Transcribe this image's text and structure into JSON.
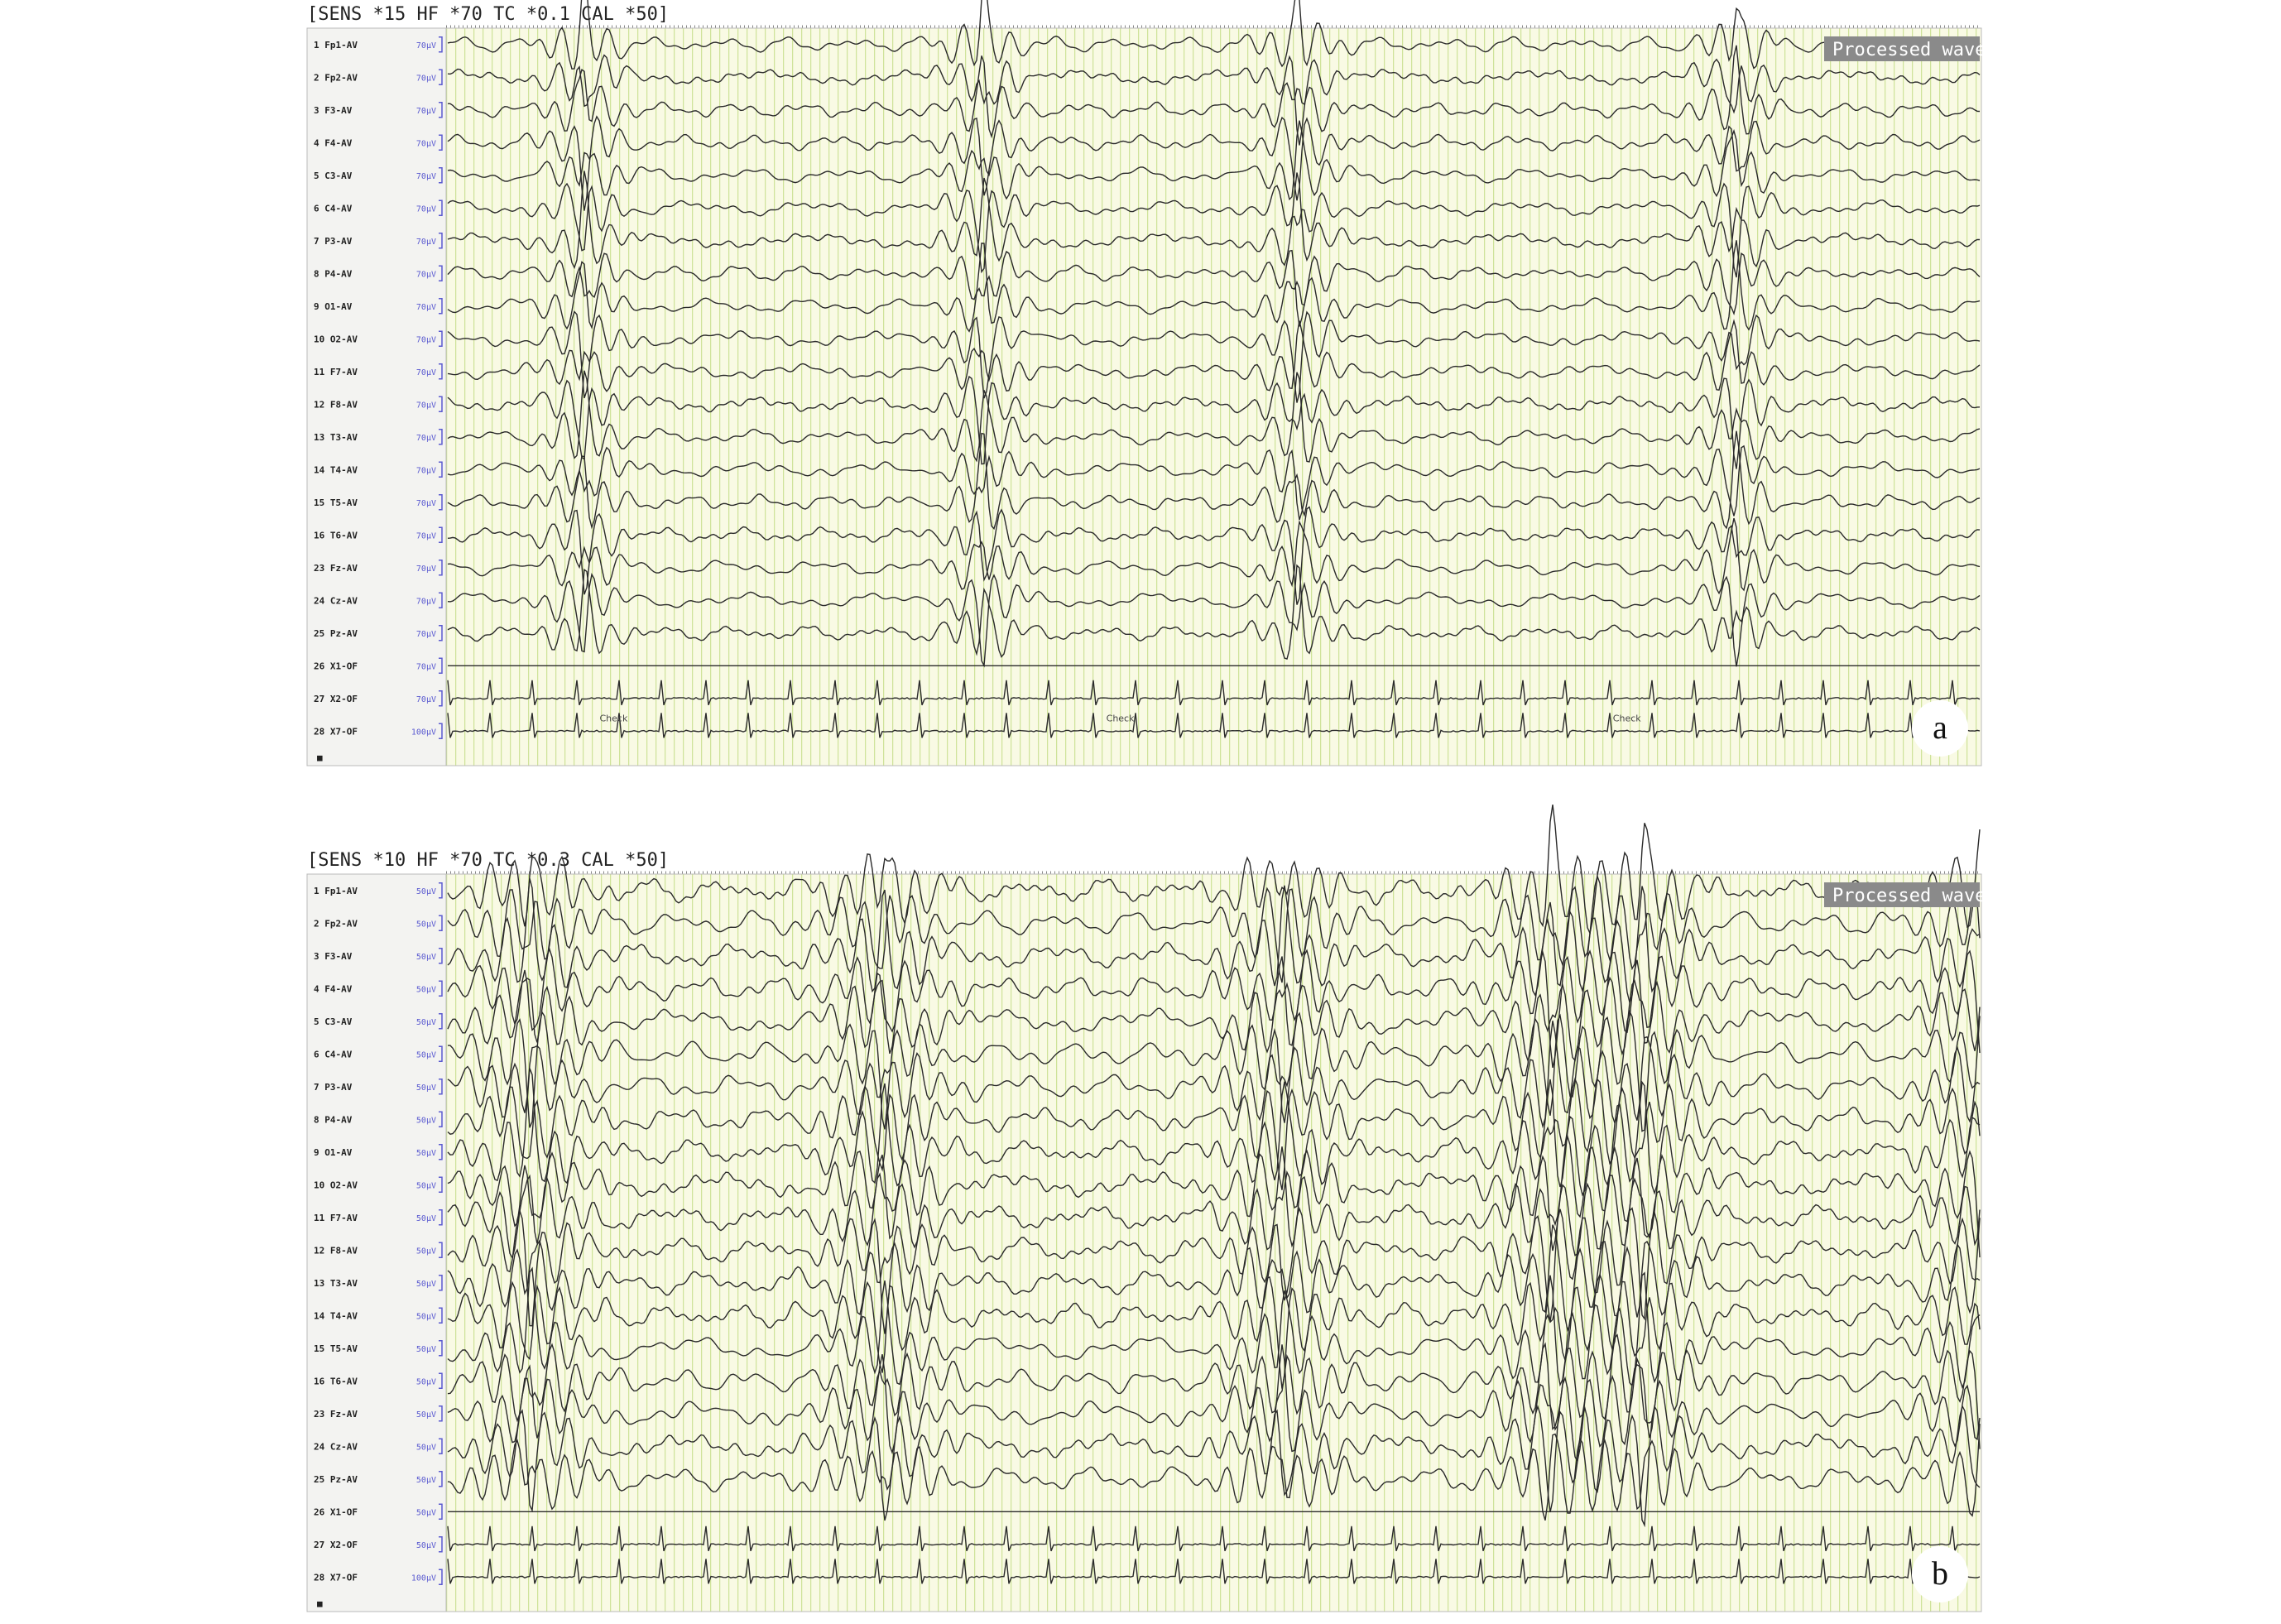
{
  "panels": [
    {
      "header": "[SENS *15  HF *70  TC *0.1  CAL *50]",
      "badge": "Processed wave",
      "letter": "a",
      "marker": "■",
      "events": [
        "Check",
        "Check",
        "Check"
      ],
      "channels": [
        {
          "label": "1 Fp1-AV",
          "sens": "70μV"
        },
        {
          "label": "2 Fp2-AV",
          "sens": "70μV"
        },
        {
          "label": "3 F3-AV",
          "sens": "70μV"
        },
        {
          "label": "4 F4-AV",
          "sens": "70μV"
        },
        {
          "label": "5 C3-AV",
          "sens": "70μV"
        },
        {
          "label": "6 C4-AV",
          "sens": "70μV"
        },
        {
          "label": "7 P3-AV",
          "sens": "70μV"
        },
        {
          "label": "8 P4-AV",
          "sens": "70μV"
        },
        {
          "label": "9 O1-AV",
          "sens": "70μV"
        },
        {
          "label": "10 O2-AV",
          "sens": "70μV"
        },
        {
          "label": "11 F7-AV",
          "sens": "70μV"
        },
        {
          "label": "12 F8-AV",
          "sens": "70μV"
        },
        {
          "label": "13 T3-AV",
          "sens": "70μV"
        },
        {
          "label": "14 T4-AV",
          "sens": "70μV"
        },
        {
          "label": "15 T5-AV",
          "sens": "70μV"
        },
        {
          "label": "16 T6-AV",
          "sens": "70μV"
        },
        {
          "label": "23 Fz-AV",
          "sens": "70μV"
        },
        {
          "label": "24 Cz-AV",
          "sens": "70μV"
        },
        {
          "label": "25 Pz-AV",
          "sens": "70μV"
        },
        {
          "label": "26 X1-OF",
          "sens": "70μV"
        },
        {
          "label": "27 X2-OF",
          "sens": "70μV"
        },
        {
          "label": "28 X7-OF",
          "sens": "100μV"
        }
      ]
    },
    {
      "header": "[SENS *10  HF *70  TC *0.3  CAL *50]",
      "badge": "Processed wave",
      "letter": "b",
      "marker": "■",
      "events": [],
      "channels": [
        {
          "label": "1 Fp1-AV",
          "sens": "50μV"
        },
        {
          "label": "2 Fp2-AV",
          "sens": "50μV"
        },
        {
          "label": "3 F3-AV",
          "sens": "50μV"
        },
        {
          "label": "4 F4-AV",
          "sens": "50μV"
        },
        {
          "label": "5 C3-AV",
          "sens": "50μV"
        },
        {
          "label": "6 C4-AV",
          "sens": "50μV"
        },
        {
          "label": "7 P3-AV",
          "sens": "50μV"
        },
        {
          "label": "8 P4-AV",
          "sens": "50μV"
        },
        {
          "label": "9 O1-AV",
          "sens": "50μV"
        },
        {
          "label": "10 O2-AV",
          "sens": "50μV"
        },
        {
          "label": "11 F7-AV",
          "sens": "50μV"
        },
        {
          "label": "12 F8-AV",
          "sens": "50μV"
        },
        {
          "label": "13 T3-AV",
          "sens": "50μV"
        },
        {
          "label": "14 T4-AV",
          "sens": "50μV"
        },
        {
          "label": "15 T5-AV",
          "sens": "50μV"
        },
        {
          "label": "16 T6-AV",
          "sens": "50μV"
        },
        {
          "label": "23 Fz-AV",
          "sens": "50μV"
        },
        {
          "label": "24 Cz-AV",
          "sens": "50μV"
        },
        {
          "label": "25 Pz-AV",
          "sens": "50μV"
        },
        {
          "label": "26 X1-OF",
          "sens": "50μV"
        },
        {
          "label": "27 X2-OF",
          "sens": "50μV"
        },
        {
          "label": "28 X7-OF",
          "sens": "100μV"
        }
      ]
    }
  ]
}
